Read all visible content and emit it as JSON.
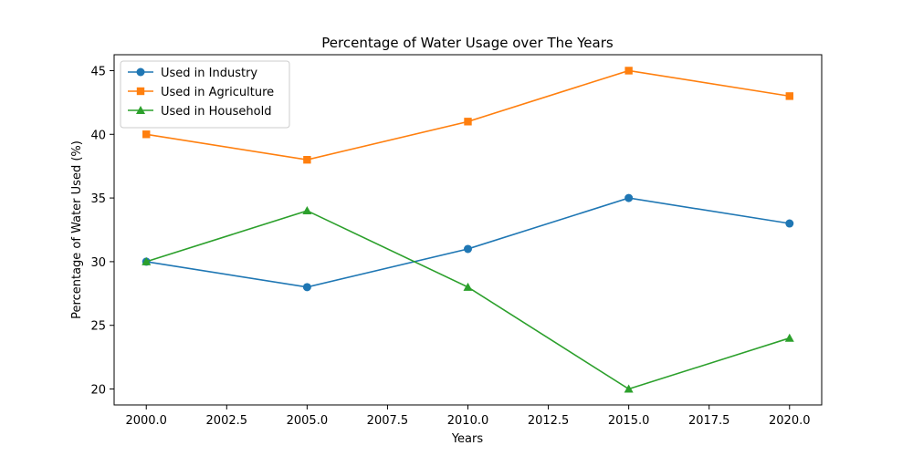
{
  "chart_data": {
    "type": "line",
    "title": "Percentage of Water Usage over The Years",
    "xlabel": "Years",
    "ylabel": "Percentage of Water Used (%)",
    "x": [
      2000,
      2005,
      2010,
      2015,
      2020
    ],
    "xlim": [
      1999.0,
      2021.0
    ],
    "ylim": [
      18.75,
      46.25
    ],
    "xticks": [
      2000.0,
      2002.5,
      2005.0,
      2007.5,
      2010.0,
      2012.5,
      2015.0,
      2017.5,
      2020.0
    ],
    "xtick_labels": [
      "2000.0",
      "2002.5",
      "2005.0",
      "2007.5",
      "2010.0",
      "2012.5",
      "2015.0",
      "2017.5",
      "2020.0"
    ],
    "yticks": [
      20,
      25,
      30,
      35,
      40,
      45
    ],
    "ytick_labels": [
      "20",
      "25",
      "30",
      "35",
      "40",
      "45"
    ],
    "grid": false,
    "legend_position": "upper-left",
    "series": [
      {
        "name": "Used in Industry",
        "values": [
          30,
          28,
          31,
          35,
          33
        ],
        "color": "#1f77b4",
        "marker": "circle"
      },
      {
        "name": "Used in Agriculture",
        "values": [
          40,
          38,
          41,
          45,
          43
        ],
        "color": "#ff7f0e",
        "marker": "square"
      },
      {
        "name": "Used in Household",
        "values": [
          30,
          34,
          28,
          20,
          24
        ],
        "color": "#2ca02c",
        "marker": "triangle"
      }
    ]
  }
}
